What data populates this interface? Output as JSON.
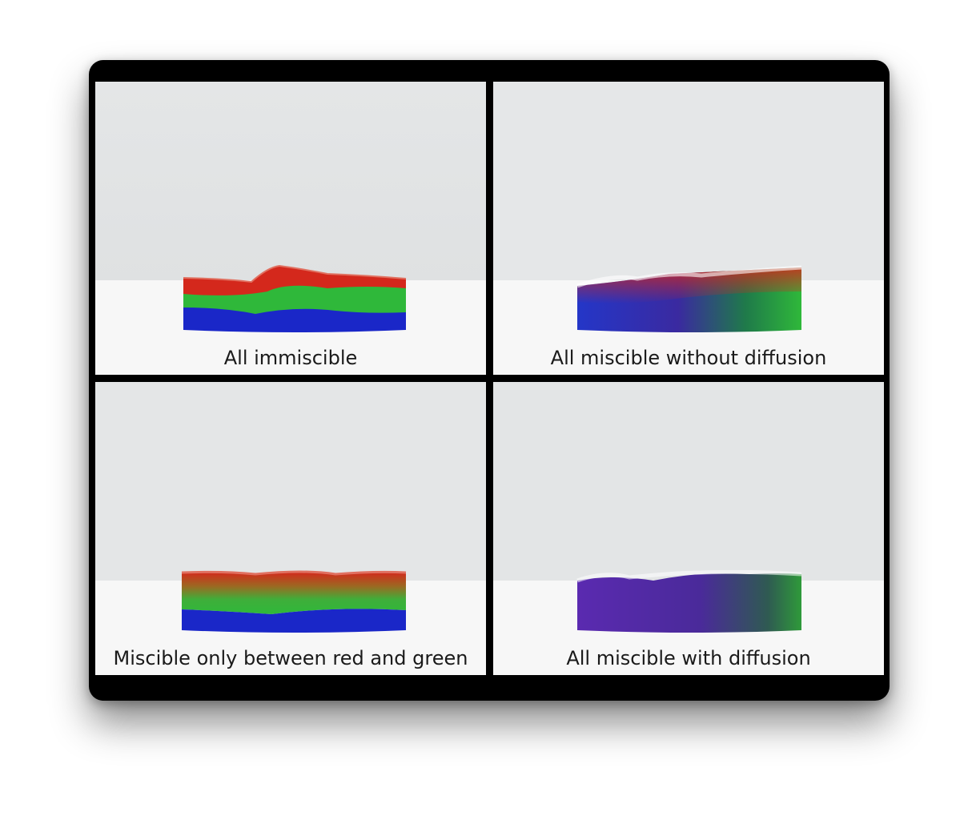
{
  "panels": [
    {
      "caption": "All immiscible",
      "mixing": "immiscible"
    },
    {
      "caption": "All miscible without diffusion",
      "mixing": "miscible-no-diffusion"
    },
    {
      "caption": "Miscible only between red and green",
      "mixing": "partial"
    },
    {
      "caption": "All miscible with diffusion",
      "mixing": "miscible-diffusion"
    }
  ],
  "colors": {
    "frame": "#000000",
    "backdrop": "#e6e8e9",
    "floor": "#f7f7f7",
    "red_fluid": "#d4281c",
    "green_fluid": "#2fb83a",
    "blue_fluid": "#1a27c8",
    "purple_mix": "#4a2a9a"
  }
}
